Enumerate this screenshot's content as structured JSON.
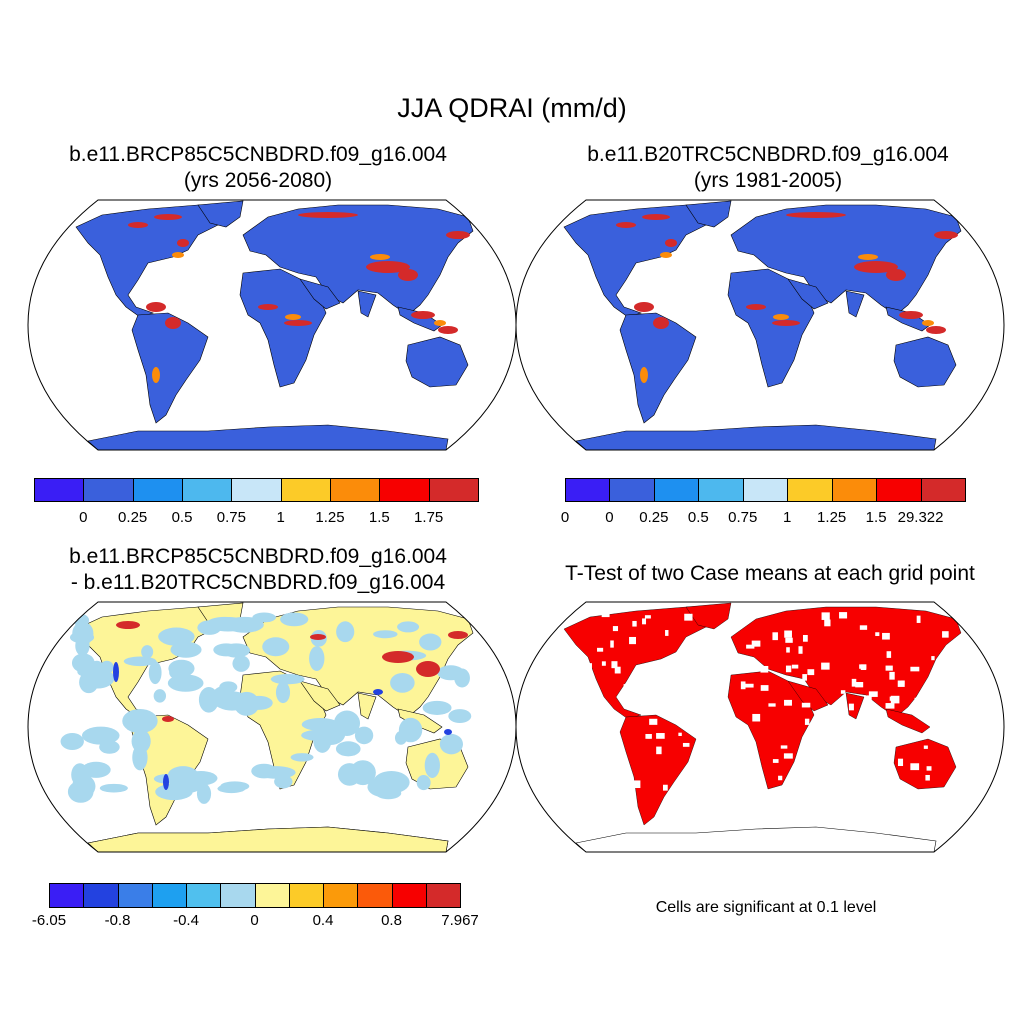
{
  "title": "JJA QDRAI (mm/d)",
  "panels": [
    {
      "title_line1": "b.e11.BRCP85C5CNBDRD.f09_g16.004",
      "title_line2": "(yrs 2056-2080)"
    },
    {
      "title_line1": "b.e11.B20TRC5CNBDRD.f09_g16.004",
      "title_line2": "(yrs 1981-2005)"
    },
    {
      "title_line1": "b.e11.BRCP85C5CNBDRD.f09_g16.004",
      "title_line2": "- b.e11.B20TRC5CNBDRD.f09_g16.004"
    },
    {
      "title_line1": "T-Test of two Case means at each grid point"
    }
  ],
  "colorbars": [
    {
      "colors": [
        "#3a1ef5",
        "#3a60dc",
        "#1e90f0",
        "#4db8ee",
        "#c8e6f8",
        "#fccb28",
        "#fb8c0a",
        "#f70000",
        "#d42a2a"
      ],
      "labels": [
        "0",
        "0.25",
        "0.5",
        "0.75",
        "1",
        "1.25",
        "1.5",
        "1.75"
      ]
    },
    {
      "colors": [
        "#3a1ef5",
        "#3a60dc",
        "#1e90f0",
        "#4db8ee",
        "#c8e6f8",
        "#fccb28",
        "#fb8c0a",
        "#f70000",
        "#d42a2a"
      ],
      "labels": [
        "0",
        "0",
        "0.25",
        "0.5",
        "0.75",
        "1",
        "1.25",
        "1.5",
        "29.322"
      ]
    },
    {
      "colors": [
        "#3a1ef5",
        "#2342e0",
        "#3a7ee8",
        "#1ea0f0",
        "#50c0ee",
        "#a8d8ee",
        "#fdf598",
        "#fccb28",
        "#fb9a0a",
        "#fb5a0a",
        "#f70000",
        "#d42a2a"
      ],
      "labels": [
        "-6.05",
        "-0.8",
        "-0.4",
        "0",
        "0.4",
        "0.8",
        "7.967"
      ]
    }
  ],
  "map_colors": {
    "ocean": "#ffffff",
    "land_p1": "#3a60dc",
    "land_p2": "#3a60dc",
    "land_p3_land": "#fdf598",
    "land_p3_alt": "#a8d8ee",
    "hot": "#d42a2a",
    "warm": "#fb8c0a",
    "signif": "#f70000"
  },
  "note": "Cells are significant at 0.1 level"
}
